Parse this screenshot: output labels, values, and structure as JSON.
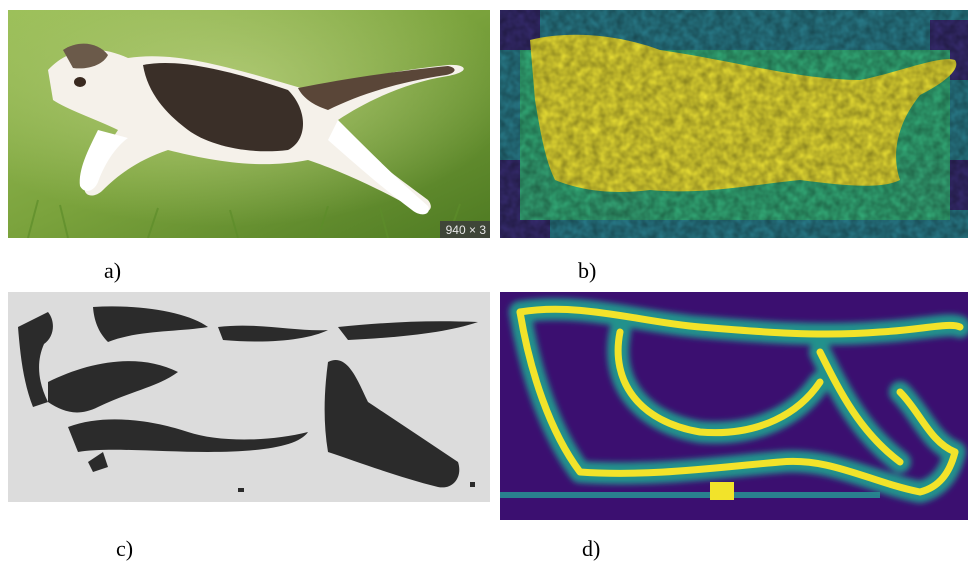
{
  "panels": [
    {
      "id": "a",
      "caption": "a)",
      "content": "photo",
      "watermark": "940 × 3"
    },
    {
      "id": "b",
      "caption": "b)",
      "content": "heatmap"
    },
    {
      "id": "c",
      "caption": "c)",
      "content": "binary-mask"
    },
    {
      "id": "d",
      "caption": "d)",
      "content": "edge-heatmap"
    }
  ],
  "colors": {
    "grass_light": "#8fb14a",
    "grass_dark": "#4f7a1f",
    "viridis_dark": "#3b0f70",
    "viridis_mid": "#21918c",
    "viridis_teal": "#2a9d8f",
    "viridis_green": "#5ec962",
    "viridis_yellow": "#f2e32a",
    "mask_bg": "#dcdcdc",
    "mask_fg": "#2b2b2b"
  }
}
